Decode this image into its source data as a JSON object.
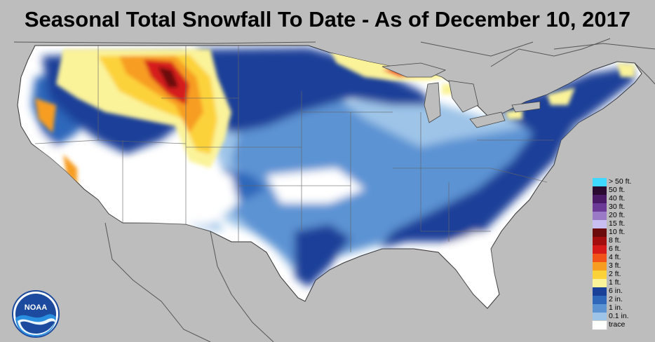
{
  "title": "Seasonal Total Snowfall To Date - As of December 10, 2017",
  "logo": {
    "text": "NOAA",
    "icon": "noaa-logo"
  },
  "legend": {
    "items": [
      {
        "label": "> 50 ft.",
        "color": "#3fd8ff"
      },
      {
        "label": "50 ft.",
        "color": "#2a0a30"
      },
      {
        "label": "40 ft.",
        "color": "#4b1a66"
      },
      {
        "label": "30 ft.",
        "color": "#6a3a96"
      },
      {
        "label": "20 ft.",
        "color": "#9a7ac6"
      },
      {
        "label": "15 ft.",
        "color": "#c8bff0"
      },
      {
        "label": "10 ft.",
        "color": "#6b0b0b"
      },
      {
        "label": "8 ft.",
        "color": "#a40d0d"
      },
      {
        "label": "6 ft.",
        "color": "#d61a1a"
      },
      {
        "label": "4 ft.",
        "color": "#f0521a"
      },
      {
        "label": "3 ft.",
        "color": "#f79d22"
      },
      {
        "label": "2 ft.",
        "color": "#fcd23a"
      },
      {
        "label": "1 ft.",
        "color": "#fbf39a"
      },
      {
        "label": "6 in.",
        "color": "#1a3f99"
      },
      {
        "label": "2 in.",
        "color": "#2f68bb"
      },
      {
        "label": "1 in.",
        "color": "#5b93d3"
      },
      {
        "label": "0.1 in.",
        "color": "#9ec4e8"
      },
      {
        "label": "trace",
        "color": "#ffffff"
      }
    ]
  },
  "colors": {
    "background": "#bdbdbd",
    "land_no_snow": "#ffffff",
    "border": "#444444"
  }
}
